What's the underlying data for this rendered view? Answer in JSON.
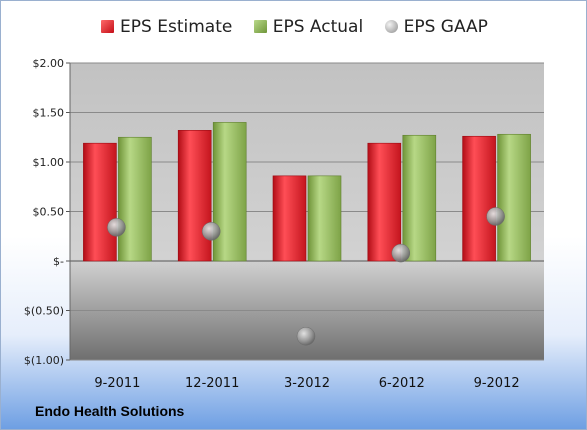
{
  "legend": {
    "estimate": "EPS Estimate",
    "actual": "EPS Actual",
    "gaap": "EPS GAAP"
  },
  "company": "Endo Health Solutions",
  "colors": {
    "estimate": "#d7232c",
    "actual": "#8fb356",
    "gaap": "#a0a0a0"
  },
  "chart_data": {
    "type": "bar",
    "title": "",
    "xlabel": "",
    "ylabel": "",
    "categories": [
      "9-2011",
      "12-2011",
      "3-2012",
      "6-2012",
      "9-2012"
    ],
    "series": [
      {
        "name": "EPS Estimate",
        "kind": "bar",
        "values": [
          1.19,
          1.32,
          0.86,
          1.19,
          1.26
        ]
      },
      {
        "name": "EPS Actual",
        "kind": "bar",
        "values": [
          1.25,
          1.4,
          0.86,
          1.27,
          1.28
        ]
      },
      {
        "name": "EPS GAAP",
        "kind": "marker",
        "values": [
          0.34,
          0.3,
          -0.76,
          0.08,
          0.45
        ]
      }
    ],
    "ylim": [
      -1.0,
      2.0
    ],
    "yticks": [
      2.0,
      1.5,
      1.0,
      0.5,
      0.0,
      -0.5,
      -1.0
    ],
    "ytick_labels": [
      "$2.00",
      "$1.50",
      "$1.00",
      "$0.50",
      "$-",
      "$(0.50)",
      "$(1.00)"
    ],
    "grid": true,
    "legend_position": "top"
  }
}
